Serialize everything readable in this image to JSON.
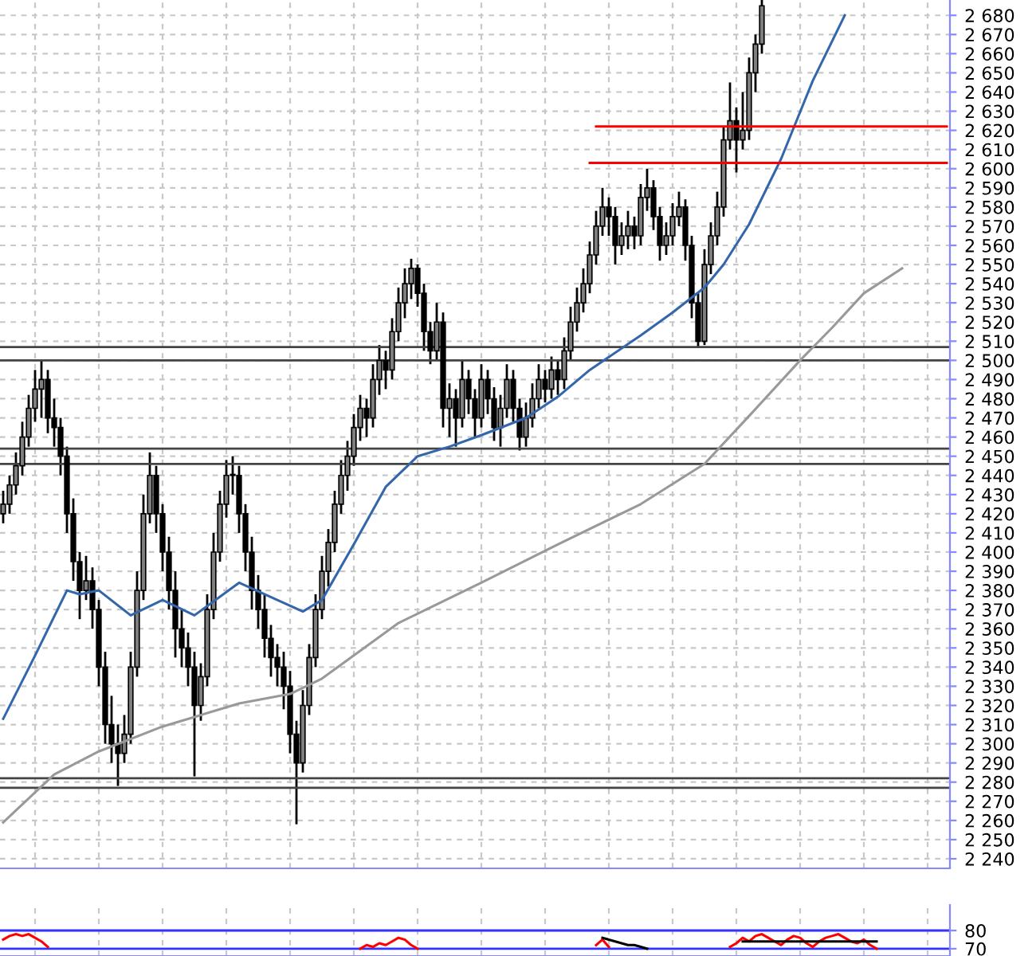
{
  "chart_data": [
    {
      "type": "candlestick",
      "tick_labels": "y",
      "grid": true,
      "categories": [
        null,
        null,
        null,
        null,
        null,
        null,
        null,
        null,
        null,
        null,
        null,
        null,
        null,
        null,
        null,
        null,
        null,
        null,
        null,
        null,
        null,
        null,
        null,
        null,
        null,
        null,
        null,
        null,
        null,
        null,
        null,
        null,
        null,
        null,
        null,
        null,
        null,
        null,
        null,
        null,
        null,
        null,
        null,
        null,
        null,
        null,
        null,
        null,
        null,
        null,
        null,
        null,
        null,
        null,
        null,
        null,
        null,
        null,
        null,
        null,
        null,
        null,
        null,
        null,
        null,
        null,
        null,
        null,
        null,
        null,
        null,
        null,
        null,
        null,
        null,
        null,
        null,
        null,
        null,
        null,
        null,
        null,
        null,
        null,
        null,
        null,
        null,
        null,
        null,
        null,
        null,
        null,
        null,
        null,
        null,
        null,
        null,
        null,
        null,
        null,
        null,
        null,
        null,
        null,
        null,
        null,
        null,
        null,
        null,
        null,
        null,
        null,
        null,
        null,
        null,
        null,
        null,
        null,
        null,
        null,
        null,
        null,
        null,
        null,
        null,
        null,
        null,
        null,
        null,
        null,
        null,
        null,
        null,
        null,
        null,
        null,
        null,
        null,
        null,
        null,
        null,
        null,
        null,
        null,
        null,
        null,
        null,
        null,
        null
      ],
      "ohlc": [
        [
          2420,
          2432,
          2415,
          2425
        ],
        [
          2425,
          2440,
          2420,
          2435
        ],
        [
          2435,
          2452,
          2430,
          2445
        ],
        [
          2445,
          2468,
          2440,
          2460
        ],
        [
          2460,
          2482,
          2455,
          2475
        ],
        [
          2475,
          2495,
          2468,
          2485
        ],
        [
          2485,
          2500,
          2470,
          2490
        ],
        [
          2490,
          2495,
          2462,
          2470
        ],
        [
          2470,
          2480,
          2455,
          2465
        ],
        [
          2465,
          2470,
          2440,
          2450
        ],
        [
          2450,
          2455,
          2410,
          2420
        ],
        [
          2420,
          2428,
          2385,
          2395
        ],
        [
          2395,
          2400,
          2365,
          2380
        ],
        [
          2380,
          2398,
          2375,
          2385
        ],
        [
          2385,
          2392,
          2360,
          2370
        ],
        [
          2370,
          2375,
          2330,
          2340
        ],
        [
          2340,
          2348,
          2300,
          2310
        ],
        [
          2310,
          2325,
          2290,
          2300
        ],
        [
          2300,
          2310,
          2278,
          2295
        ],
        [
          2295,
          2315,
          2290,
          2305
        ],
        [
          2305,
          2348,
          2300,
          2340
        ],
        [
          2340,
          2390,
          2335,
          2380
        ],
        [
          2380,
          2430,
          2375,
          2420
        ],
        [
          2420,
          2452,
          2415,
          2440
        ],
        [
          2440,
          2445,
          2410,
          2420
        ],
        [
          2420,
          2425,
          2390,
          2400
        ],
        [
          2400,
          2408,
          2370,
          2380
        ],
        [
          2380,
          2390,
          2345,
          2360
        ],
        [
          2360,
          2370,
          2340,
          2350
        ],
        [
          2350,
          2358,
          2330,
          2340
        ],
        [
          2340,
          2348,
          2283,
          2320
        ],
        [
          2320,
          2342,
          2312,
          2335
        ],
        [
          2335,
          2378,
          2330,
          2370
        ],
        [
          2370,
          2410,
          2365,
          2400
        ],
        [
          2400,
          2432,
          2395,
          2425
        ],
        [
          2425,
          2448,
          2418,
          2440
        ],
        [
          2440,
          2450,
          2430,
          2440
        ],
        [
          2440,
          2445,
          2410,
          2420
        ],
        [
          2420,
          2425,
          2390,
          2400
        ],
        [
          2400,
          2408,
          2370,
          2380
        ],
        [
          2380,
          2388,
          2360,
          2370
        ],
        [
          2370,
          2378,
          2345,
          2355
        ],
        [
          2355,
          2362,
          2335,
          2345
        ],
        [
          2345,
          2352,
          2330,
          2340
        ],
        [
          2340,
          2348,
          2318,
          2330
        ],
        [
          2330,
          2338,
          2295,
          2305
        ],
        [
          2305,
          2312,
          2258,
          2290
        ],
        [
          2290,
          2328,
          2285,
          2320
        ],
        [
          2320,
          2352,
          2315,
          2345
        ],
        [
          2345,
          2378,
          2340,
          2370
        ],
        [
          2370,
          2398,
          2365,
          2390
        ],
        [
          2390,
          2412,
          2382,
          2405
        ],
        [
          2405,
          2432,
          2400,
          2425
        ],
        [
          2425,
          2448,
          2420,
          2440
        ],
        [
          2440,
          2458,
          2432,
          2450
        ],
        [
          2450,
          2472,
          2445,
          2465
        ],
        [
          2465,
          2482,
          2458,
          2475
        ],
        [
          2475,
          2480,
          2460,
          2470
        ],
        [
          2470,
          2498,
          2465,
          2490
        ],
        [
          2490,
          2508,
          2482,
          2500
        ],
        [
          2500,
          2505,
          2485,
          2495
        ],
        [
          2495,
          2522,
          2490,
          2515
        ],
        [
          2515,
          2538,
          2510,
          2530
        ],
        [
          2530,
          2548,
          2522,
          2540
        ],
        [
          2540,
          2553,
          2532,
          2548
        ],
        [
          2548,
          2550,
          2528,
          2535
        ],
        [
          2535,
          2540,
          2505,
          2515
        ],
        [
          2515,
          2520,
          2498,
          2505
        ],
        [
          2505,
          2530,
          2500,
          2520
        ],
        [
          2520,
          2525,
          2465,
          2475
        ],
        [
          2475,
          2488,
          2460,
          2480
        ],
        [
          2480,
          2485,
          2455,
          2470
        ],
        [
          2470,
          2500,
          2465,
          2490
        ],
        [
          2490,
          2495,
          2472,
          2480
        ],
        [
          2480,
          2485,
          2460,
          2470
        ],
        [
          2470,
          2498,
          2465,
          2490
        ],
        [
          2490,
          2495,
          2472,
          2480
        ],
        [
          2480,
          2486,
          2458,
          2465
        ],
        [
          2465,
          2482,
          2455,
          2475
        ],
        [
          2475,
          2498,
          2470,
          2490
        ],
        [
          2490,
          2495,
          2468,
          2475
        ],
        [
          2475,
          2480,
          2453,
          2460
        ],
        [
          2460,
          2478,
          2455,
          2470
        ],
        [
          2470,
          2488,
          2465,
          2480
        ],
        [
          2480,
          2498,
          2475,
          2490
        ],
        [
          2490,
          2495,
          2478,
          2485
        ],
        [
          2485,
          2502,
          2480,
          2495
        ],
        [
          2495,
          2500,
          2482,
          2490
        ],
        [
          2490,
          2512,
          2485,
          2505
        ],
        [
          2505,
          2528,
          2500,
          2520
        ],
        [
          2520,
          2538,
          2515,
          2530
        ],
        [
          2530,
          2548,
          2525,
          2540
        ],
        [
          2540,
          2562,
          2535,
          2555
        ],
        [
          2555,
          2578,
          2550,
          2570
        ],
        [
          2570,
          2590,
          2565,
          2580
        ],
        [
          2580,
          2585,
          2565,
          2575
        ],
        [
          2575,
          2580,
          2550,
          2560
        ],
        [
          2560,
          2572,
          2555,
          2565
        ],
        [
          2565,
          2578,
          2558,
          2570
        ],
        [
          2570,
          2575,
          2558,
          2565
        ],
        [
          2565,
          2592,
          2560,
          2585
        ],
        [
          2585,
          2600,
          2578,
          2590
        ],
        [
          2590,
          2594,
          2568,
          2575
        ],
        [
          2575,
          2580,
          2552,
          2560
        ],
        [
          2560,
          2572,
          2555,
          2565
        ],
        [
          2565,
          2582,
          2560,
          2575
        ],
        [
          2575,
          2588,
          2570,
          2580
        ],
        [
          2580,
          2584,
          2552,
          2560
        ],
        [
          2560,
          2565,
          2522,
          2530
        ],
        [
          2530,
          2535,
          2507,
          2510
        ],
        [
          2510,
          2558,
          2508,
          2550
        ],
        [
          2550,
          2572,
          2545,
          2565
        ],
        [
          2565,
          2588,
          2560,
          2580
        ],
        [
          2580,
          2622,
          2575,
          2615
        ],
        [
          2615,
          2645,
          2610,
          2625
        ],
        [
          2625,
          2632,
          2598,
          2615
        ],
        [
          2615,
          2640,
          2610,
          2620
        ],
        [
          2620,
          2658,
          2615,
          2650
        ],
        [
          2650,
          2670,
          2640,
          2665
        ],
        [
          2665,
          2688,
          2660,
          2685
        ],
        null,
        null,
        null,
        null,
        null,
        null,
        null,
        null,
        null,
        null,
        null,
        null,
        null,
        null,
        null,
        null,
        null,
        null,
        null,
        null,
        null,
        null,
        null,
        null,
        null,
        null,
        null,
        null,
        null
      ],
      "series": [
        {
          "type": "line",
          "color": "#3366aa",
          "values": [
            2313,
            null,
            null,
            null,
            null,
            2346,
            null,
            null,
            null,
            null,
            2380,
            null,
            2378,
            null,
            null,
            2380,
            null,
            null,
            null,
            null,
            2367,
            null,
            null,
            null,
            null,
            2375,
            null,
            null,
            null,
            null,
            2367,
            null,
            null,
            null,
            null,
            null,
            null,
            2384,
            null,
            null,
            null,
            null,
            null,
            2375,
            null,
            null,
            null,
            2369,
            null,
            null,
            2375,
            null,
            null,
            null,
            null,
            2404,
            null,
            null,
            null,
            null,
            2434,
            null,
            null,
            null,
            null,
            2450,
            null,
            null,
            null,
            null,
            2455,
            null,
            null,
            null,
            null,
            2461,
            null,
            null,
            null,
            null,
            null,
            null,
            2470,
            null,
            null,
            null,
            null,
            2481,
            null,
            null,
            null,
            null,
            2495,
            null,
            null,
            null,
            null,
            null,
            null,
            null,
            2513,
            null,
            null,
            null,
            null,
            2525,
            null,
            null,
            null,
            null,
            2538,
            null,
            null,
            2550,
            null,
            null,
            null,
            2571,
            null,
            null,
            null,
            null,
            2605,
            null,
            null,
            null,
            null,
            2646,
            null,
            null,
            null,
            null,
            2680,
            null,
            null,
            null,
            null,
            null,
            null,
            null,
            null,
            null,
            null,
            null,
            null,
            null,
            null,
            null,
            null
          ]
        },
        {
          "type": "line",
          "color": "#999999",
          "values": [
            2259,
            null,
            null,
            null,
            null,
            null,
            null,
            null,
            2284,
            null,
            null,
            null,
            null,
            null,
            null,
            2296,
            null,
            null,
            null,
            null,
            null,
            null,
            null,
            null,
            null,
            2309,
            null,
            null,
            null,
            null,
            null,
            null,
            null,
            null,
            null,
            null,
            null,
            2321,
            null,
            null,
            null,
            null,
            null,
            null,
            null,
            2326,
            null,
            null,
            null,
            null,
            2334,
            null,
            null,
            null,
            null,
            null,
            null,
            null,
            null,
            null,
            null,
            null,
            2363,
            null,
            null,
            null,
            null,
            null,
            null,
            null,
            null,
            null,
            null,
            null,
            null,
            2384,
            null,
            null,
            null,
            null,
            null,
            null,
            null,
            null,
            null,
            null,
            null,
            2404,
            null,
            null,
            null,
            null,
            null,
            null,
            null,
            null,
            null,
            null,
            null,
            null,
            2425,
            null,
            null,
            null,
            null,
            null,
            null,
            null,
            null,
            null,
            2446,
            null,
            null,
            null,
            null,
            null,
            null,
            2471,
            null,
            null,
            null,
            null,
            null,
            null,
            null,
            2500,
            null,
            null,
            null,
            null,
            2517,
            null,
            null,
            null,
            null,
            2535,
            null,
            null,
            null,
            null,
            null,
            2548,
            null,
            null,
            null,
            null,
            null,
            null,
            null
          ]
        },
        {
          "type": "line",
          "color": "#ff0000",
          "values": [
            null,
            null,
            null,
            null,
            null,
            null,
            null,
            null,
            null,
            null,
            null,
            null,
            null,
            null,
            null,
            null,
            null,
            null,
            null,
            null,
            null,
            null,
            null,
            null,
            null,
            null,
            null,
            null,
            null,
            null,
            null,
            null,
            null,
            null,
            null,
            null,
            null,
            null,
            null,
            null,
            null,
            null,
            null,
            null,
            null,
            null,
            null,
            null,
            null,
            null,
            null,
            null,
            null,
            null,
            null,
            null,
            null,
            null,
            null,
            null,
            null,
            null,
            null,
            null,
            null,
            null,
            null,
            null,
            null,
            null,
            null,
            null,
            null,
            null,
            null,
            null,
            null,
            null,
            null,
            null,
            null,
            null,
            null,
            null,
            null,
            null,
            null,
            null,
            null,
            null,
            null,
            null,
            null,
            2622,
            null,
            null,
            null,
            null,
            null,
            null,
            null,
            null,
            null,
            null,
            null,
            null,
            null,
            null,
            null,
            null,
            null,
            null,
            null,
            null,
            null,
            null,
            null,
            null,
            null,
            null,
            null,
            null,
            null,
            null,
            null,
            null,
            null,
            null,
            null,
            null,
            null,
            null,
            null,
            null,
            null,
            null,
            null,
            null,
            null,
            null,
            null,
            null,
            null,
            null,
            null,
            null,
            null,
            null,
            2622
          ]
        },
        {
          "type": "line",
          "color": "#ff0000",
          "values": [
            null,
            null,
            null,
            null,
            null,
            null,
            null,
            null,
            null,
            null,
            null,
            null,
            null,
            null,
            null,
            null,
            null,
            null,
            null,
            null,
            null,
            null,
            null,
            null,
            null,
            null,
            null,
            null,
            null,
            null,
            null,
            null,
            null,
            null,
            null,
            null,
            null,
            null,
            null,
            null,
            null,
            null,
            null,
            null,
            null,
            null,
            null,
            null,
            null,
            null,
            null,
            null,
            null,
            null,
            null,
            null,
            null,
            null,
            null,
            null,
            null,
            null,
            null,
            null,
            null,
            null,
            null,
            null,
            null,
            null,
            null,
            null,
            null,
            null,
            null,
            null,
            null,
            null,
            null,
            null,
            null,
            null,
            null,
            null,
            null,
            null,
            null,
            null,
            null,
            null,
            null,
            null,
            2603,
            null,
            null,
            null,
            null,
            null,
            null,
            null,
            null,
            null,
            null,
            null,
            null,
            null,
            null,
            null,
            null,
            null,
            null,
            null,
            null,
            null,
            null,
            null,
            null,
            null,
            null,
            null,
            null,
            null,
            null,
            null,
            null,
            null,
            null,
            null,
            null,
            null,
            null,
            null,
            null,
            null,
            null,
            null,
            null,
            null,
            null,
            null,
            null,
            null,
            null,
            null,
            null,
            null,
            null,
            null,
            2603
          ]
        }
      ],
      "ref_lines": [
        {
          "axis": "y",
          "value": 2507,
          "color": "#444444"
        },
        {
          "axis": "y",
          "value": 2500,
          "color": "#444444"
        },
        {
          "axis": "y",
          "value": 2454,
          "color": "#444444"
        },
        {
          "axis": "y",
          "value": 2446,
          "color": "#444444"
        },
        {
          "axis": "y",
          "value": 2282,
          "color": "#444444"
        },
        {
          "axis": "y",
          "value": 2277,
          "color": "#444444"
        }
      ],
      "ylim": [
        2235,
        2688
      ],
      "yticks": [
        {
          "value": 2240,
          "label": "2 240"
        },
        {
          "value": 2250,
          "label": "2 250"
        },
        {
          "value": 2260,
          "label": "2 260"
        },
        {
          "value": 2270,
          "label": "2 270"
        },
        {
          "value": 2280,
          "label": "2 280"
        },
        {
          "value": 2290,
          "label": "2 290"
        },
        {
          "value": 2300,
          "label": "2 300"
        },
        {
          "value": 2310,
          "label": "2 310"
        },
        {
          "value": 2320,
          "label": "2 320"
        },
        {
          "value": 2330,
          "label": "2 330"
        },
        {
          "value": 2340,
          "label": "2 340"
        },
        {
          "value": 2350,
          "label": "2 350"
        },
        {
          "value": 2360,
          "label": "2 360"
        },
        {
          "value": 2370,
          "label": "2 370"
        },
        {
          "value": 2380,
          "label": "2 380"
        },
        {
          "value": 2390,
          "label": "2 390"
        },
        {
          "value": 2400,
          "label": "2 400"
        },
        {
          "value": 2410,
          "label": "2 410"
        },
        {
          "value": 2420,
          "label": "2 420"
        },
        {
          "value": 2430,
          "label": "2 430"
        },
        {
          "value": 2440,
          "label": "2 440"
        },
        {
          "value": 2450,
          "label": "2 450"
        },
        {
          "value": 2460,
          "label": "2 460"
        },
        {
          "value": 2470,
          "label": "2 470"
        },
        {
          "value": 2480,
          "label": "2 480"
        },
        {
          "value": 2490,
          "label": "2 490"
        },
        {
          "value": 2500,
          "label": "2 500"
        },
        {
          "value": 2510,
          "label": "2 510"
        },
        {
          "value": 2520,
          "label": "2 520"
        },
        {
          "value": 2530,
          "label": "2 530"
        },
        {
          "value": 2540,
          "label": "2 540"
        },
        {
          "value": 2550,
          "label": "2 550"
        },
        {
          "value": 2560,
          "label": "2 560"
        },
        {
          "value": 2570,
          "label": "2 570"
        },
        {
          "value": 2580,
          "label": "2 580"
        },
        {
          "value": 2590,
          "label": "2 590"
        },
        {
          "value": 2600,
          "label": "2 600"
        },
        {
          "value": 2610,
          "label": "2 610"
        },
        {
          "value": 2620,
          "label": "2 620"
        },
        {
          "value": 2630,
          "label": "2 630"
        },
        {
          "value": 2640,
          "label": "2 640"
        },
        {
          "value": 2650,
          "label": "2 650"
        },
        {
          "value": 2660,
          "label": "2 660"
        },
        {
          "value": 2670,
          "label": "2 670"
        },
        {
          "value": 2680,
          "label": "2 680"
        }
      ]
    },
    {
      "type": "line",
      "tick_labels": "y",
      "grid": "x",
      "categories": [
        null,
        null,
        null,
        null,
        null,
        null,
        null,
        null,
        null,
        null,
        null,
        null,
        null,
        null,
        null,
        null,
        null,
        null,
        null,
        null,
        null,
        null,
        null,
        null,
        null,
        null,
        null,
        null,
        null,
        null,
        null,
        null,
        null,
        null,
        null,
        null,
        null,
        null,
        null,
        null,
        null,
        null,
        null,
        null,
        null,
        null,
        null,
        null,
        null,
        null,
        null,
        null,
        null,
        null,
        null,
        null,
        null,
        null,
        null,
        null,
        null,
        null,
        null,
        null,
        null,
        null,
        null,
        null,
        null,
        null,
        null,
        null,
        null,
        null,
        null,
        null,
        null,
        null,
        null,
        null,
        null,
        null,
        null,
        null,
        null,
        null,
        null,
        null,
        null,
        null,
        null,
        null,
        null,
        null,
        null,
        null,
        null,
        null,
        null,
        null,
        null,
        null,
        null,
        null,
        null,
        null,
        null,
        null,
        null,
        null,
        null,
        null,
        null,
        null,
        null,
        null,
        null,
        null,
        null,
        null,
        null,
        null,
        null,
        null,
        null,
        null,
        null,
        null,
        null,
        null,
        null,
        null,
        null,
        null,
        null,
        null,
        null,
        null,
        null,
        null,
        null,
        null,
        null,
        null,
        null,
        null,
        null,
        null,
        null
      ],
      "series": [
        {
          "color": "#ff0000",
          "values": [
            75,
            77,
            78,
            77,
            78,
            76,
            74,
            71,
            null,
            null,
            null,
            null,
            null,
            null,
            null,
            null,
            null,
            null,
            null,
            null,
            null,
            null,
            null,
            null,
            null,
            null,
            null,
            null,
            null,
            null,
            null,
            null,
            null,
            null,
            null,
            null,
            null,
            null,
            null,
            null,
            null,
            null,
            null,
            null,
            null,
            null,
            null,
            null,
            null,
            null,
            null,
            null,
            null,
            null,
            null,
            null,
            70,
            72,
            71,
            73,
            72,
            74,
            76,
            75,
            72,
            70,
            null,
            null,
            null,
            null,
            null,
            null,
            null,
            null,
            null,
            null,
            null,
            null,
            null,
            null,
            null,
            null,
            null,
            null,
            null,
            null,
            null,
            null,
            null,
            null,
            null,
            null,
            null,
            72,
            75,
            71,
            null,
            null,
            null,
            null,
            null,
            null,
            null,
            null,
            null,
            null,
            null,
            null,
            null,
            null,
            null,
            null,
            null,
            null,
            71,
            73,
            76,
            74,
            77,
            78,
            76,
            74,
            72,
            75,
            77,
            76,
            73,
            71,
            74,
            76,
            77,
            78,
            76,
            74,
            73,
            75,
            72,
            70,
            null,
            null,
            null,
            null,
            null,
            null,
            null,
            null,
            null,
            null,
            null
          ]
        },
        {
          "color": "#000000",
          "values": [
            null,
            null,
            null,
            null,
            null,
            null,
            null,
            null,
            null,
            null,
            null,
            null,
            null,
            null,
            null,
            null,
            null,
            null,
            null,
            null,
            null,
            null,
            null,
            null,
            null,
            null,
            null,
            null,
            null,
            null,
            null,
            null,
            null,
            null,
            null,
            null,
            null,
            null,
            null,
            null,
            null,
            null,
            null,
            null,
            null,
            null,
            null,
            null,
            null,
            null,
            null,
            null,
            null,
            null,
            null,
            null,
            null,
            null,
            null,
            null,
            null,
            null,
            null,
            null,
            null,
            null,
            null,
            null,
            null,
            null,
            null,
            null,
            null,
            null,
            null,
            null,
            null,
            null,
            null,
            null,
            null,
            null,
            null,
            null,
            null,
            null,
            null,
            null,
            null,
            null,
            null,
            null,
            null,
            null,
            76,
            75,
            74,
            73,
            72,
            72,
            71,
            70,
            null,
            null,
            null,
            null,
            null,
            null,
            null,
            null,
            null,
            null,
            null,
            null,
            null,
            null,
            null,
            null,
            null,
            null,
            null,
            null,
            null,
            null,
            null,
            null,
            null,
            null,
            null,
            null,
            null,
            null,
            null,
            null,
            null,
            null,
            null,
            null,
            null,
            null,
            null,
            null,
            null,
            null,
            null,
            null,
            null,
            null,
            null
          ]
        },
        {
          "color": "#000000",
          "values": [
            null,
            null,
            null,
            null,
            null,
            null,
            null,
            null,
            null,
            null,
            null,
            null,
            null,
            null,
            null,
            null,
            null,
            null,
            null,
            null,
            null,
            null,
            null,
            null,
            null,
            null,
            null,
            null,
            null,
            null,
            null,
            null,
            null,
            null,
            null,
            null,
            null,
            null,
            null,
            null,
            null,
            null,
            null,
            null,
            null,
            null,
            null,
            null,
            null,
            null,
            null,
            null,
            null,
            null,
            null,
            null,
            null,
            null,
            null,
            null,
            null,
            null,
            null,
            null,
            null,
            null,
            null,
            null,
            null,
            null,
            null,
            null,
            null,
            null,
            null,
            null,
            null,
            null,
            null,
            null,
            null,
            null,
            null,
            null,
            null,
            null,
            null,
            null,
            null,
            null,
            null,
            null,
            null,
            null,
            null,
            null,
            null,
            null,
            null,
            null,
            null,
            null,
            null,
            null,
            null,
            null,
            null,
            null,
            null,
            null,
            null,
            null,
            null,
            null,
            null,
            null,
            74,
            74,
            74,
            74,
            74,
            74,
            74,
            74,
            74,
            74,
            74,
            74,
            74,
            74,
            74,
            74,
            74,
            74,
            74,
            74,
            74,
            74,
            null,
            null,
            null,
            null,
            null,
            null,
            null,
            null,
            null,
            null,
            null
          ]
        }
      ],
      "ref_lines": [
        {
          "axis": "y",
          "value": 80,
          "color": "#3333ff"
        },
        {
          "axis": "y",
          "value": 70,
          "color": "#3333ff"
        }
      ],
      "ylim": [
        66,
        94
      ],
      "yticks": [
        70,
        80
      ]
    }
  ]
}
